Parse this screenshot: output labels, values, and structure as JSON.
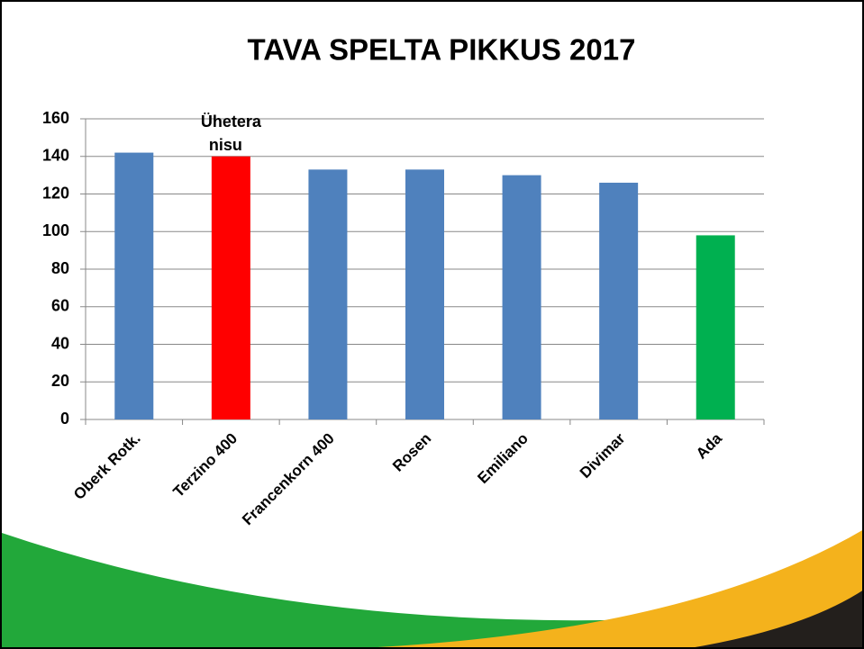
{
  "chart_data": {
    "type": "bar",
    "title": "TAVA SPELTA PIKKUS 2017",
    "categories": [
      "Oberk Rotk.",
      "Terzino 400",
      "Francenkorn 400",
      "Rosen",
      "Emiliano",
      "Divimar",
      "Ada"
    ],
    "values": [
      142,
      140,
      133,
      133,
      130,
      126,
      98
    ],
    "colors": [
      "#4f81bd",
      "#ff0000",
      "#4f81bd",
      "#4f81bd",
      "#4f81bd",
      "#4f81bd",
      "#00b050"
    ],
    "annotation": [
      "Ühetera",
      "nisu"
    ],
    "ylim": [
      0,
      160
    ],
    "yticks": [
      0,
      20,
      40,
      60,
      80,
      100,
      120,
      140,
      160
    ],
    "grid": true
  }
}
